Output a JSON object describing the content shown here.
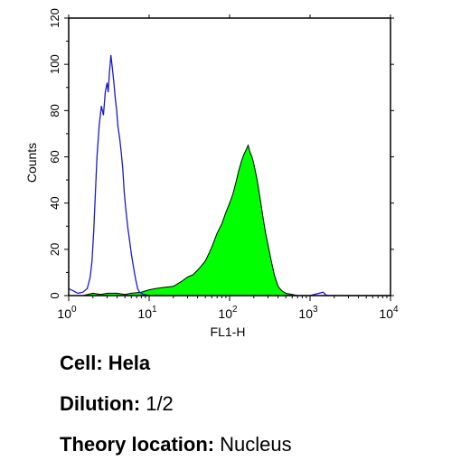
{
  "chart_data": {
    "type": "area",
    "xlabel": "FL1-H",
    "ylabel": "Counts",
    "xscale": "log",
    "xlim": [
      1,
      10000
    ],
    "ylim": [
      0,
      120
    ],
    "yticks": [
      0,
      20,
      40,
      60,
      80,
      100,
      120
    ],
    "xticks": [
      {
        "base": "10",
        "exp": "0",
        "value": 1
      },
      {
        "base": "10",
        "exp": "1",
        "value": 10
      },
      {
        "base": "10",
        "exp": "2",
        "value": 100
      },
      {
        "base": "10",
        "exp": "3",
        "value": 1000
      },
      {
        "base": "10",
        "exp": "4",
        "value": 10000
      }
    ],
    "series": [
      {
        "style": "outline",
        "color": "#1a1acc",
        "points": [
          [
            1.0,
            3
          ],
          [
            1.15,
            2
          ],
          [
            1.3,
            1
          ],
          [
            1.5,
            1.5
          ],
          [
            1.7,
            3
          ],
          [
            1.85,
            8
          ],
          [
            1.95,
            15
          ],
          [
            2.05,
            28
          ],
          [
            2.15,
            45
          ],
          [
            2.25,
            60
          ],
          [
            2.4,
            74
          ],
          [
            2.55,
            82
          ],
          [
            2.7,
            78
          ],
          [
            2.85,
            88
          ],
          [
            3.0,
            92
          ],
          [
            3.1,
            88
          ],
          [
            3.2,
            96
          ],
          [
            3.35,
            104
          ],
          [
            3.5,
            98
          ],
          [
            3.65,
            92
          ],
          [
            3.8,
            85
          ],
          [
            3.95,
            80
          ],
          [
            4.1,
            73
          ],
          [
            4.3,
            68
          ],
          [
            4.5,
            62
          ],
          [
            4.7,
            55
          ],
          [
            4.9,
            45
          ],
          [
            5.1,
            38
          ],
          [
            5.4,
            30
          ],
          [
            5.7,
            24
          ],
          [
            6.0,
            18
          ],
          [
            6.4,
            12
          ],
          [
            6.8,
            7
          ],
          [
            7.2,
            3
          ],
          [
            7.6,
            1.5
          ],
          [
            8.5,
            0.5
          ],
          [
            10,
            0
          ],
          [
            20,
            0
          ],
          [
            100,
            0
          ],
          [
            1000,
            0
          ],
          [
            1450,
            1.5
          ],
          [
            1600,
            0
          ],
          [
            10000,
            0
          ]
        ]
      },
      {
        "style": "filled",
        "color": "#00ff00",
        "points": [
          [
            1.0,
            0
          ],
          [
            1.5,
            0
          ],
          [
            2.0,
            1
          ],
          [
            2.5,
            0.5
          ],
          [
            3.0,
            1
          ],
          [
            4.0,
            1
          ],
          [
            5.0,
            0.5
          ],
          [
            6.0,
            1
          ],
          [
            8.0,
            1.5
          ],
          [
            10,
            2.5
          ],
          [
            12,
            3
          ],
          [
            15,
            3.5
          ],
          [
            20,
            4
          ],
          [
            25,
            6
          ],
          [
            30,
            8
          ],
          [
            35,
            9
          ],
          [
            40,
            11
          ],
          [
            45,
            13
          ],
          [
            50,
            15
          ],
          [
            55,
            18
          ],
          [
            60,
            21
          ],
          [
            65,
            24
          ],
          [
            70,
            27
          ],
          [
            80,
            31
          ],
          [
            90,
            36
          ],
          [
            100,
            40
          ],
          [
            110,
            44
          ],
          [
            120,
            49
          ],
          [
            130,
            54
          ],
          [
            140,
            58
          ],
          [
            150,
            61
          ],
          [
            160,
            63
          ],
          [
            170,
            65
          ],
          [
            180,
            62
          ],
          [
            190,
            60
          ],
          [
            200,
            57
          ],
          [
            220,
            50
          ],
          [
            240,
            42
          ],
          [
            260,
            34
          ],
          [
            280,
            27
          ],
          [
            300,
            22
          ],
          [
            330,
            15
          ],
          [
            360,
            9
          ],
          [
            400,
            4
          ],
          [
            450,
            2
          ],
          [
            500,
            1
          ],
          [
            600,
            0.5
          ],
          [
            700,
            0
          ],
          [
            10000,
            0
          ]
        ]
      }
    ]
  },
  "info": {
    "cell": {
      "key": "Cell:",
      "value": "Hela"
    },
    "dilution": {
      "key": "Dilution:",
      "value": "1/2"
    },
    "theory": {
      "key": "Theory location:",
      "value": "Nucleus"
    }
  }
}
